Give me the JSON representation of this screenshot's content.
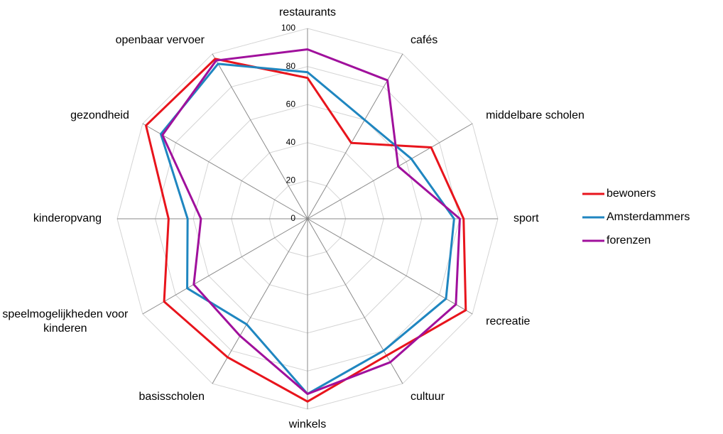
{
  "chart_data": {
    "type": "radar",
    "categories": [
      "restaurants",
      "cafés",
      "middelbare scholen",
      "sport",
      "recreatie",
      "cultuur",
      "winkels",
      "basisscholen",
      "speelmogelijkheden voor kinderen",
      "kinderopvang",
      "gezondheid",
      "openbaar vervoer"
    ],
    "series": [
      {
        "name": "bewoners",
        "color": "#e8141c",
        "values": [
          74,
          46,
          75,
          82,
          96,
          83,
          96,
          84,
          87,
          73,
          98,
          97
        ]
      },
      {
        "name": "Amsterdammers",
        "color": "#1f86c0",
        "values": [
          77,
          60,
          63,
          77,
          84,
          80,
          92,
          64,
          73,
          63,
          89,
          94
        ]
      },
      {
        "name": "forenzen",
        "color": "#a0109c",
        "values": [
          89,
          84,
          55,
          80,
          90,
          87,
          92,
          71,
          69,
          56,
          88,
          96
        ]
      }
    ],
    "ylim": [
      0,
      100
    ],
    "yticks": [
      0,
      20,
      40,
      60,
      80,
      100
    ],
    "grid": true,
    "legend": "right"
  }
}
